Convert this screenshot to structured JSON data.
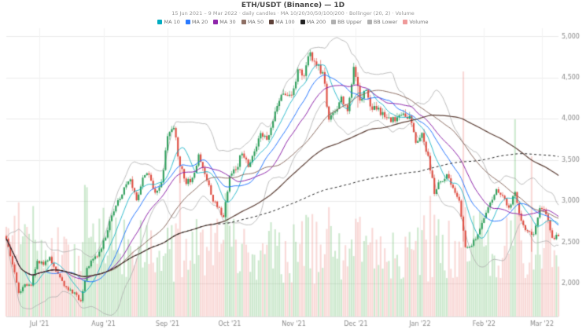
{
  "header": {
    "title": "ETH/USDT (Binance) — 1D",
    "subtitle": "15 Jun 2021 – 9 Mar 2022 · daily candles · MA 10/20/30/50/100/200 · Bollinger (20, 2) · Volume"
  },
  "legend": {
    "items": [
      {
        "label": "MA 10",
        "color": "#00acc1"
      },
      {
        "label": "MA 20",
        "color": "#2979ff"
      },
      {
        "label": "MA 30",
        "color": "#8e24aa"
      },
      {
        "label": "MA 50",
        "color": "#8d6e63"
      },
      {
        "label": "MA 100",
        "color": "#5d4037"
      },
      {
        "label": "MA 200",
        "color": "#212121"
      },
      {
        "label": "BB Upper",
        "color": "#b0b0b0"
      },
      {
        "label": "BB Lower",
        "color": "#b0b0b0"
      },
      {
        "label": "Volume",
        "color": "#ef9a9a"
      }
    ]
  },
  "chart_data": {
    "type": "candlestick",
    "title": "ETH/USDT (Binance) — 1D",
    "x_start_date": "2021-06-15",
    "anchor_interval_days": 3,
    "anchor_closes": [
      2543,
      2232,
      1887,
      1990,
      1975,
      2275,
      2226,
      2322,
      2146,
      2031,
      1919,
      1891,
      1786,
      2189,
      2299,
      2386,
      2558,
      2827,
      3012,
      3168,
      3265,
      3011,
      3286,
      3320,
      3103,
      3227,
      3790,
      3889,
      3425,
      3209,
      3284,
      3568,
      3328,
      3078,
      2928,
      2806,
      3310,
      3384,
      3578,
      3415,
      3605,
      3827,
      3746,
      3972,
      4217,
      4287,
      4288,
      4601,
      4521,
      4808,
      4646,
      4567,
      3990,
      4087,
      4271,
      4093,
      4631,
      4222,
      4349,
      4110,
      4135,
      4019,
      3961,
      4019,
      4065,
      4037,
      3709,
      3829,
      3550,
      3088,
      3240,
      3328,
      3161,
      3006,
      2441,
      2460,
      2598,
      2793,
      2983,
      3145,
      3066,
      2921,
      3110,
      2763,
      2637,
      2598,
      2916,
      2840,
      2555,
      2575
    ],
    "month_ticks": [
      {
        "day": 16,
        "label": "Jul '21"
      },
      {
        "day": 47,
        "label": "Aug '21"
      },
      {
        "day": 78,
        "label": "Sep '21"
      },
      {
        "day": 108,
        "label": "Oct '21"
      },
      {
        "day": 139,
        "label": "Nov '21"
      },
      {
        "day": 169,
        "label": "Dec '21"
      },
      {
        "day": 200,
        "label": "Jan '22"
      },
      {
        "day": 231,
        "label": "Feb '22"
      },
      {
        "day": 259,
        "label": "Mar '22"
      }
    ],
    "ylim": [
      1600,
      5100
    ],
    "y_ticks": [
      2000,
      2500,
      3000,
      3500,
      4000,
      4500,
      5000
    ],
    "volume_spikes": {
      "84": 1.9,
      "170": 1.9,
      "221": 1.9,
      "246": 3.4,
      "254": 2.0
    },
    "wide_range_days": {
      "84": 0.06,
      "170": 0.06,
      "221": 0.05,
      "254": 0.08
    },
    "overlays": [
      {
        "name": "MA 10",
        "window": 10,
        "color": "#00acc1",
        "dashed": false,
        "width": 0.8
      },
      {
        "name": "MA 20",
        "window": 20,
        "color": "#2979ff",
        "dashed": false,
        "width": 1.0
      },
      {
        "name": "MA 30",
        "window": 30,
        "color": "#8e24aa",
        "dashed": false,
        "width": 1.0
      },
      {
        "name": "MA 50",
        "window": 50,
        "color": "#8d6e63",
        "dashed": false,
        "width": 1.0
      },
      {
        "name": "MA 100",
        "window": 100,
        "color": "#5d4037",
        "dashed": false,
        "width": 1.2
      },
      {
        "name": "MA 200",
        "window": 200,
        "color": "#212121",
        "dashed": true,
        "width": 1.0
      }
    ],
    "bollinger": {
      "window": 20,
      "mult": 2,
      "color": "#adadad"
    },
    "colors": {
      "up": "#2e9e5b",
      "down": "#df4e42",
      "vol_up": "rgba(76,175,80,0.28)",
      "vol_down": "rgba(229,97,86,0.24)",
      "grid": "#ececec",
      "vgrid": "#f2f2f2",
      "axis_text": "#8a8a8a",
      "axis_line": "#dddddd"
    }
  }
}
